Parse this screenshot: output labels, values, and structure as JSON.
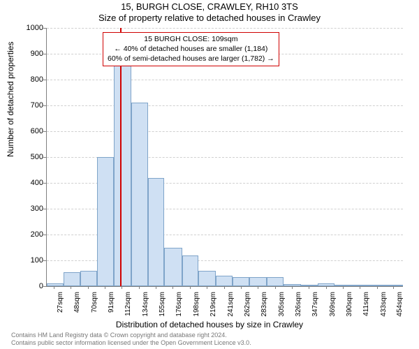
{
  "title_line1": "15, BURGH CLOSE, CRAWLEY, RH10 3TS",
  "title_line2": "Size of property relative to detached houses in Crawley",
  "yaxis_label": "Number of detached properties",
  "xaxis_label": "Distribution of detached houses by size in Crawley",
  "attribution_line1": "Contains HM Land Registry data © Crown copyright and database right 2024.",
  "attribution_line2": "Contains public sector information licensed under the Open Government Licence v3.0.",
  "chart": {
    "type": "histogram",
    "ylim": [
      0,
      1000
    ],
    "ytick_step": 100,
    "xlim_sqm": [
      17,
      465
    ],
    "marker_sqm": 109,
    "marker_color": "#d00000",
    "bar_fill": "#cfe0f3",
    "bar_stroke": "#7fa4c9",
    "grid_color": "#d0d0d0",
    "axis_color": "#808080",
    "background_color": "#ffffff",
    "xticks_sqm": [
      27,
      48,
      70,
      91,
      112,
      134,
      155,
      176,
      198,
      219,
      241,
      262,
      283,
      305,
      326,
      347,
      369,
      390,
      411,
      433,
      454
    ],
    "xtick_suffix": "sqm",
    "bins": [
      {
        "start": 17,
        "end": 38,
        "count": 10
      },
      {
        "start": 38,
        "end": 59,
        "count": 55
      },
      {
        "start": 59,
        "end": 80,
        "count": 60
      },
      {
        "start": 80,
        "end": 101,
        "count": 500
      },
      {
        "start": 101,
        "end": 123,
        "count": 880
      },
      {
        "start": 123,
        "end": 144,
        "count": 710
      },
      {
        "start": 144,
        "end": 165,
        "count": 420
      },
      {
        "start": 165,
        "end": 187,
        "count": 150
      },
      {
        "start": 187,
        "end": 208,
        "count": 120
      },
      {
        "start": 208,
        "end": 230,
        "count": 60
      },
      {
        "start": 230,
        "end": 251,
        "count": 40
      },
      {
        "start": 251,
        "end": 272,
        "count": 35
      },
      {
        "start": 272,
        "end": 294,
        "count": 35
      },
      {
        "start": 294,
        "end": 315,
        "count": 35
      },
      {
        "start": 315,
        "end": 337,
        "count": 8
      },
      {
        "start": 337,
        "end": 358,
        "count": 5
      },
      {
        "start": 358,
        "end": 379,
        "count": 12
      },
      {
        "start": 379,
        "end": 401,
        "count": 2
      },
      {
        "start": 401,
        "end": 422,
        "count": 2
      },
      {
        "start": 422,
        "end": 443,
        "count": 2
      },
      {
        "start": 443,
        "end": 465,
        "count": 2
      }
    ],
    "annotation": {
      "line1": "15 BURGH CLOSE: 109sqm",
      "line2": "← 40% of detached houses are smaller (1,184)",
      "line3": "60% of semi-detached houses are larger (1,782) →",
      "border_color": "#d00000"
    }
  }
}
